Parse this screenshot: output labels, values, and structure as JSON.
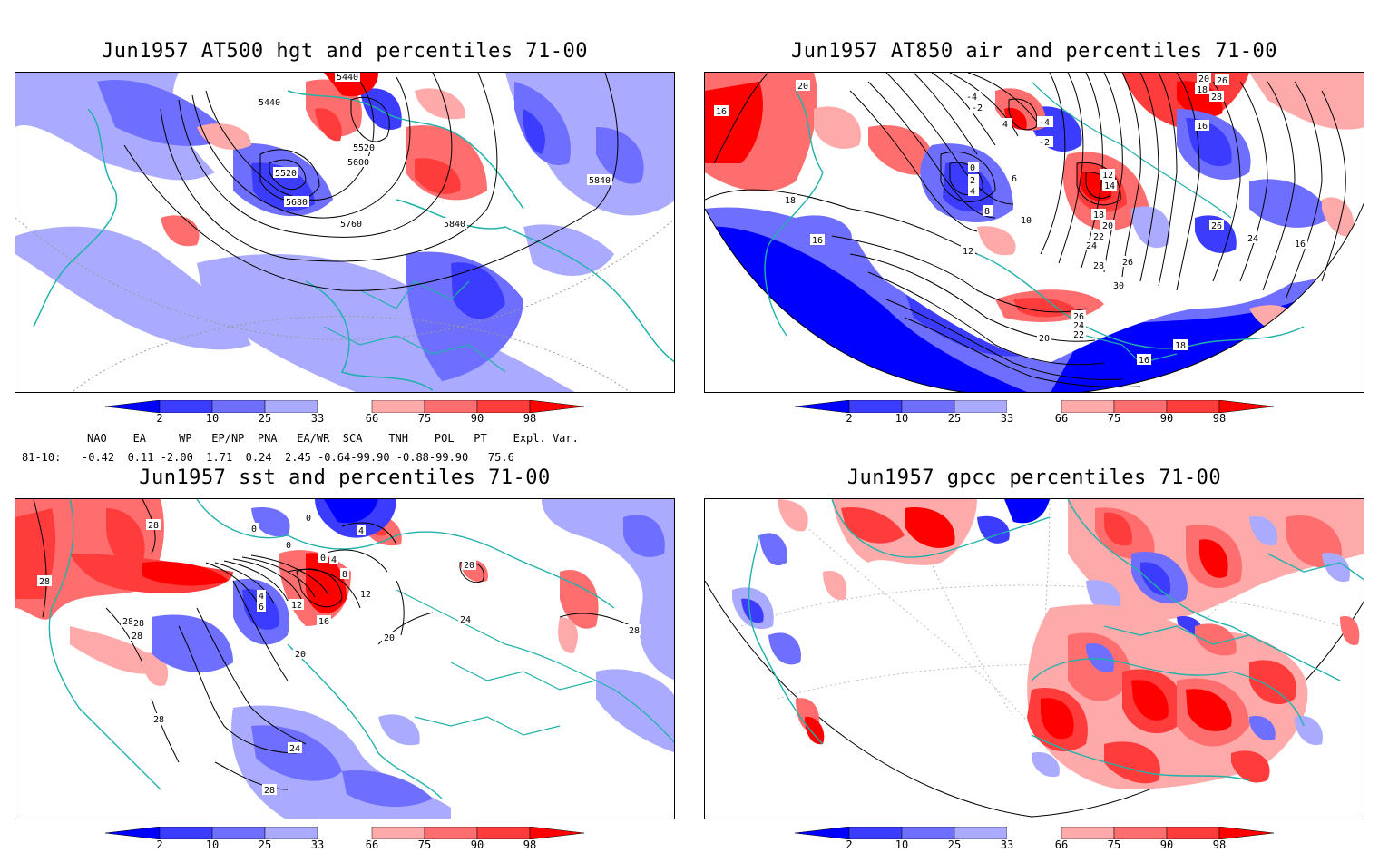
{
  "panels": {
    "p1_title": "Jun1957 AT500 hgt and percentiles 71-00",
    "p2_title": "Jun1957 AT850 air and percentiles 71-00",
    "p3_title": "Jun1957 sst and percentiles 71-00",
    "p4_title": "Jun1957 gpcc percentiles 71-00"
  },
  "colorbar": {
    "labels": [
      "2",
      "10",
      "25",
      "33",
      "66",
      "75",
      "90",
      "98"
    ],
    "colors": {
      "b98": "#0000ff",
      "b90": "#3c3cff",
      "b75": "#6e6eff",
      "b66": "#aaaaff",
      "white": "#ffffff",
      "r66": "#ffaaaa",
      "r75": "#ff6e6e",
      "r90": "#ff3c3c",
      "r98": "#ff0000"
    }
  },
  "indices": {
    "header": "NAO    EA     WP   EP/NP  PNA   EA/WR  SCA    TNH    POL   PT    Expl. Var.",
    "row_label": "81-10:",
    "values": "-0.42  0.11 -2.00  1.71  0.24  2.45 -0.64-99.90 -0.88-99.90   75.6"
  },
  "contour_labels": {
    "hgt": [
      "5440",
      "5440",
      "5520",
      "5520",
      "5600",
      "5680",
      "5760",
      "5840",
      "5840"
    ],
    "air": [
      "20",
      "16",
      "18",
      "16",
      "-4",
      "-2",
      "4",
      "-4",
      "-2",
      "0",
      "2",
      "4",
      "6",
      "8",
      "10",
      "12",
      "12",
      "14",
      "18",
      "20",
      "22",
      "24",
      "26",
      "28",
      "30",
      "26",
      "24",
      "22",
      "20",
      "16",
      "18",
      "16",
      "18",
      "20",
      "26",
      "28",
      "24",
      "26",
      "16"
    ],
    "sst": [
      "28",
      "28",
      "28",
      "28",
      "0",
      "0",
      "0",
      "4",
      "0",
      "4",
      "8",
      "12",
      "4",
      "6",
      "12",
      "16",
      "20",
      "20",
      "24",
      "28",
      "28",
      "24",
      "28",
      "28",
      "20"
    ]
  }
}
